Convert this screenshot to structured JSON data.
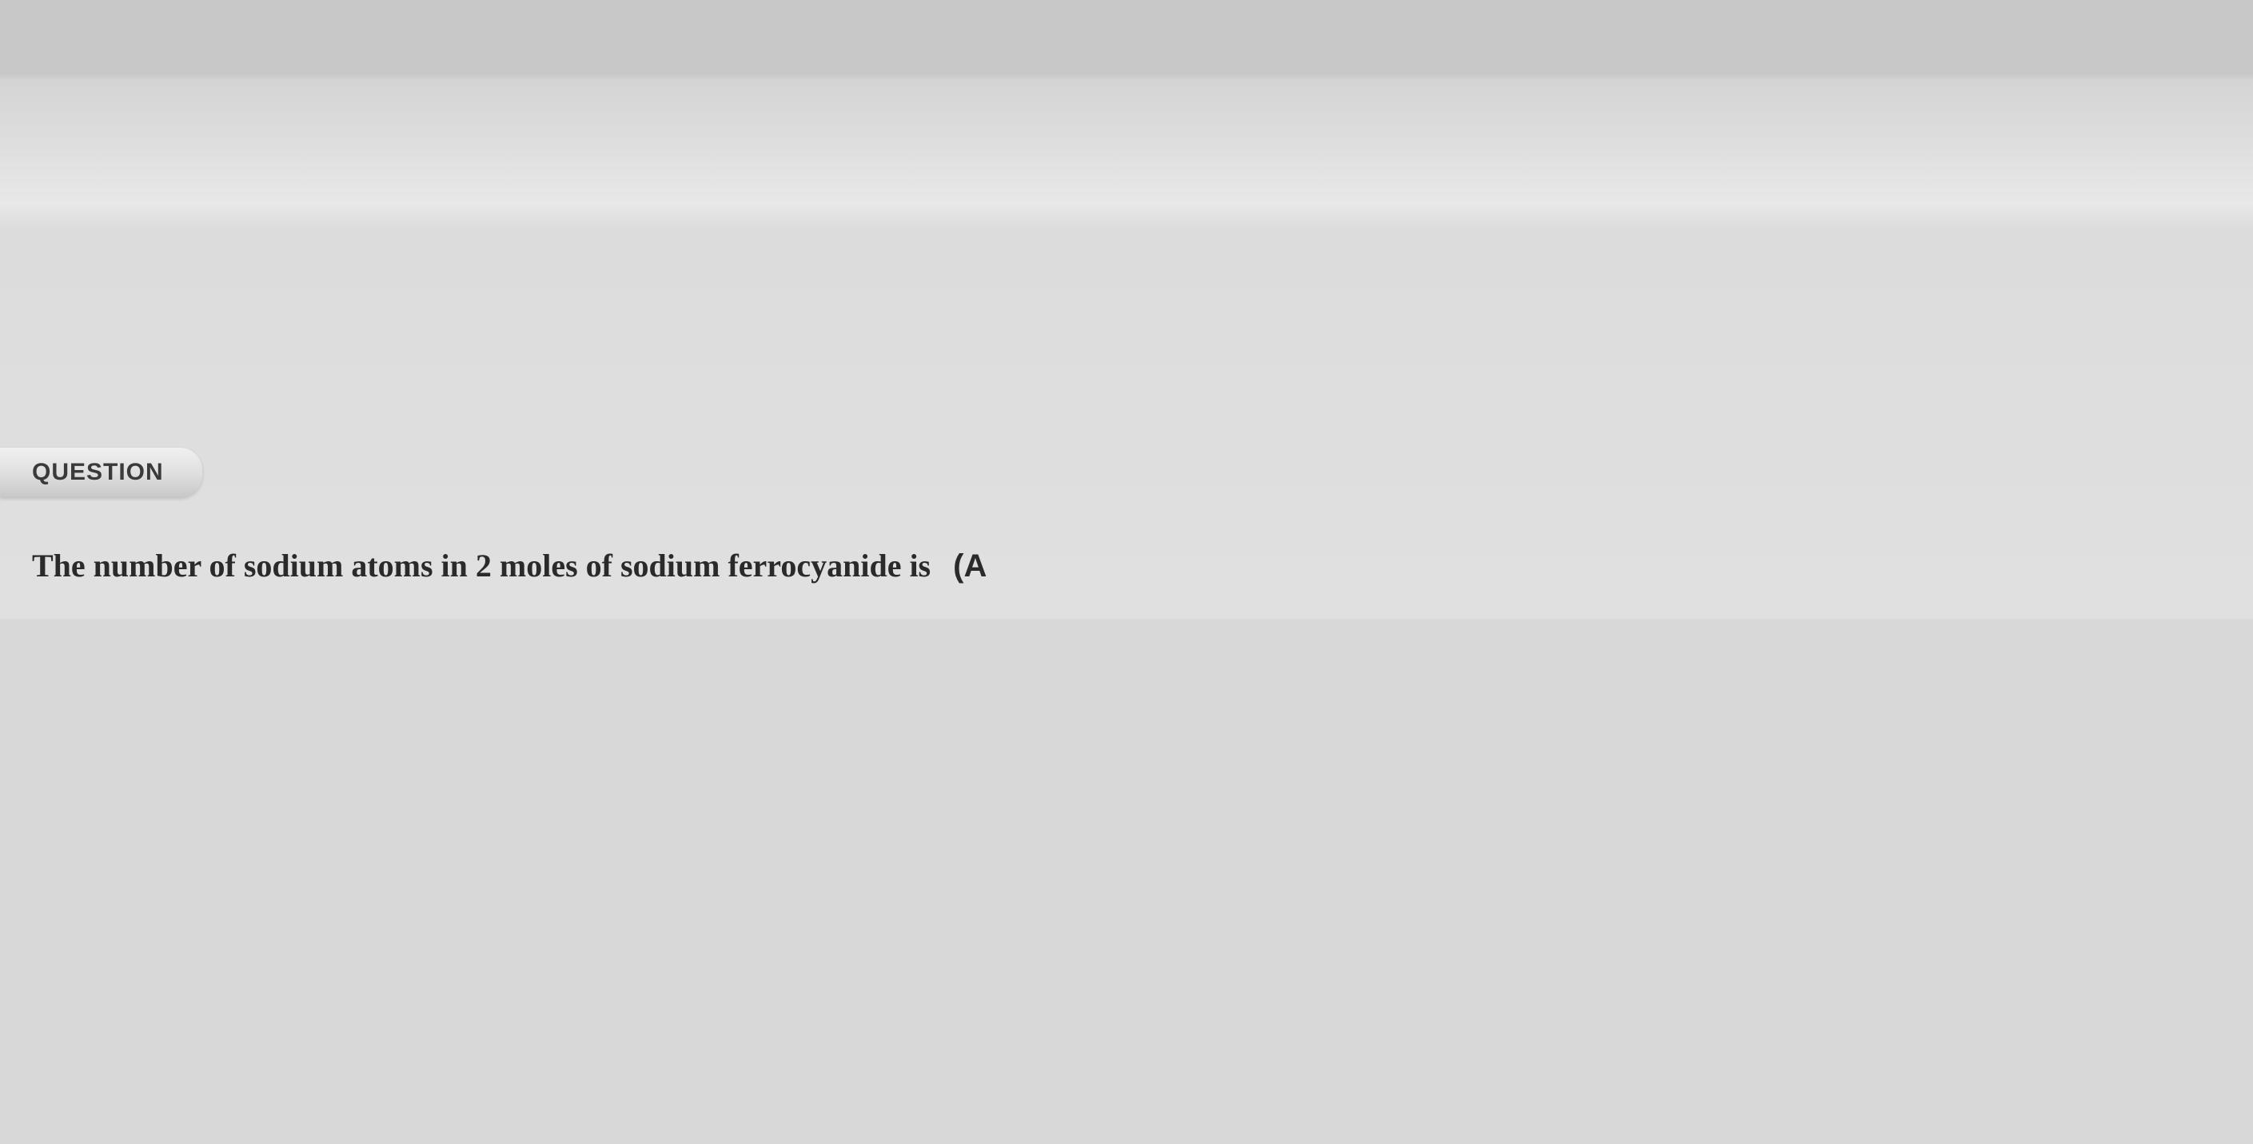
{
  "page": {
    "background_gradient_top": "#c8c8c8",
    "background_gradient_bottom": "#e0e0e0"
  },
  "question": {
    "tab_label": "QUESTION",
    "tab_bg_top": "#f0f0f0",
    "tab_bg_bottom": "#c8c8c8",
    "tab_fontsize": 30,
    "body_text": "The number of sodium atoms in 2 moles of sodium ferrocyanide is",
    "body_fontsize": 40,
    "body_fontweight": 700,
    "option_marker": "(A",
    "text_color": "#2a2a2a"
  }
}
